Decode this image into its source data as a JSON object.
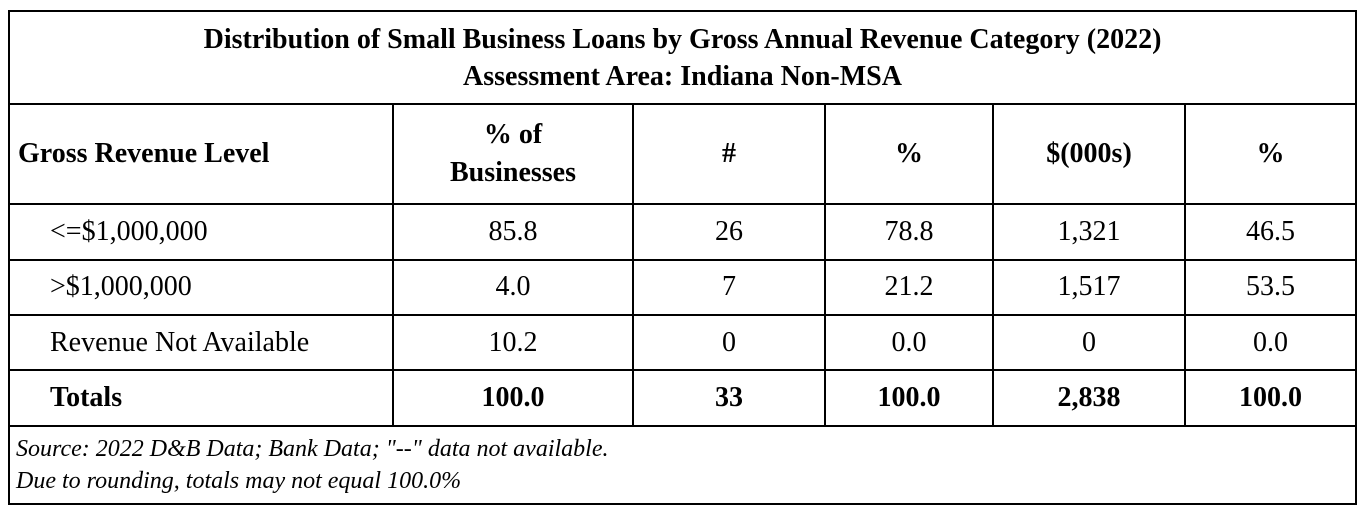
{
  "title": {
    "line1": "Distribution of Small Business Loans by Gross Annual Revenue Category (2022)",
    "line2": "Assessment Area: Indiana Non-MSA"
  },
  "headers": {
    "level": "Gross Revenue Level",
    "pct_businesses_line1": "% of",
    "pct_businesses_line2": "Businesses",
    "count": "#",
    "pct_count": "%",
    "dollars": "$(000s)",
    "pct_dollars": "%"
  },
  "rows": [
    {
      "level": "<=$1,000,000",
      "pct_businesses": "85.8",
      "count": "26",
      "pct_count": "78.8",
      "dollars": "1,321",
      "pct_dollars": "46.5"
    },
    {
      "level": ">$1,000,000",
      "pct_businesses": "4.0",
      "count": "7",
      "pct_count": "21.2",
      "dollars": "1,517",
      "pct_dollars": "53.5"
    },
    {
      "level": "Revenue Not Available",
      "pct_businesses": "10.2",
      "count": "0",
      "pct_count": "0.0",
      "dollars": "0",
      "pct_dollars": "0.0"
    }
  ],
  "totals": {
    "level": "Totals",
    "pct_businesses": "100.0",
    "count": "33",
    "pct_count": "100.0",
    "dollars": "2,838",
    "pct_dollars": "100.0"
  },
  "notes": {
    "line1": "Source: 2022 D&B Data; Bank Data; \"--\" data not available.",
    "line2": "Due to rounding, totals may not equal 100.0%"
  }
}
